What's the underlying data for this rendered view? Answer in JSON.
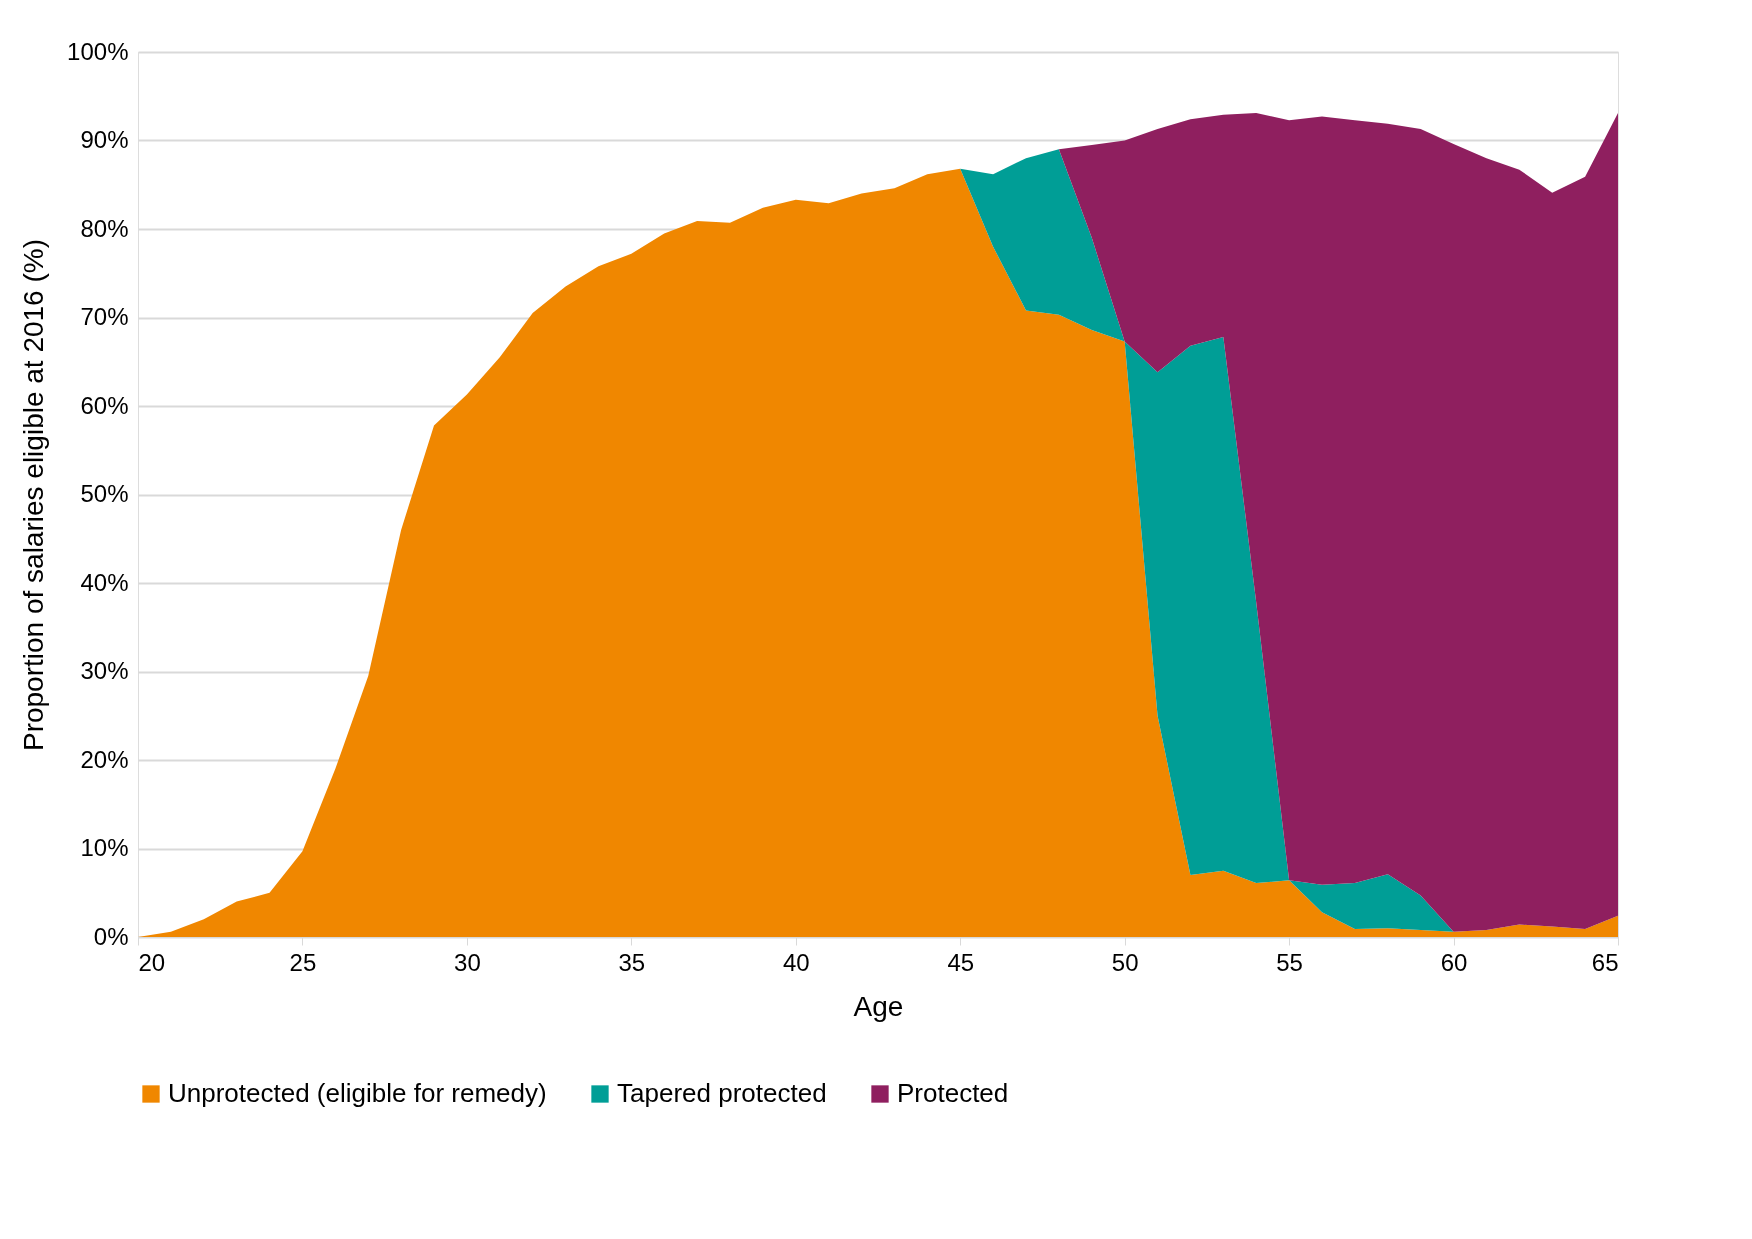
{
  "chart_data": {
    "type": "area",
    "stacked": true,
    "xlabel": "Age",
    "ylabel": "Proportion of salaries eligible at 2016 (%)",
    "x": [
      20,
      21,
      22,
      23,
      24,
      25,
      26,
      27,
      28,
      29,
      30,
      31,
      32,
      33,
      34,
      35,
      36,
      37,
      38,
      39,
      40,
      41,
      42,
      43,
      44,
      45,
      46,
      47,
      48,
      49,
      50,
      51,
      52,
      53,
      54,
      55,
      56,
      57,
      58,
      59,
      60,
      61,
      62,
      63,
      64,
      65
    ],
    "series": [
      {
        "name": "Unprotected (eligible for remedy)",
        "color": "#f08700",
        "values": [
          0,
          0.6,
          2,
          4,
          5,
          9.7,
          19,
          29.5,
          46,
          57.8,
          61.3,
          65.5,
          70.5,
          73.5,
          75.8,
          77.2,
          79.5,
          80.9,
          80.7,
          82.4,
          83.3,
          82.9,
          84,
          84.6,
          86.2,
          86.8,
          78,
          70.8,
          70.3,
          68.6,
          67.3,
          25,
          7,
          7.5,
          6.1,
          6.4,
          2.8,
          0.9,
          1,
          0.8,
          0.6,
          0.8,
          1.4,
          1.2,
          0.9,
          2.4
        ]
      },
      {
        "name": "Tapered protected",
        "color": "#009e96",
        "values": [
          0,
          0,
          0,
          0,
          0,
          0,
          0,
          0,
          0,
          0,
          0,
          0,
          0,
          0,
          0,
          0,
          0,
          0,
          0,
          0,
          0,
          0,
          0,
          0,
          0,
          0,
          8.2,
          17.2,
          18.7,
          10.4,
          0,
          38.8,
          59.8,
          60.3,
          31.7,
          0,
          3.1,
          5.2,
          6.1,
          3.9,
          0,
          0,
          0,
          0,
          0,
          0
        ]
      },
      {
        "name": "Protected",
        "color": "#8f1f5f",
        "values": [
          0,
          0,
          0,
          0,
          0,
          0,
          0,
          0,
          0,
          0,
          0,
          0,
          0,
          0,
          0,
          0,
          0,
          0,
          0,
          0,
          0,
          0,
          0,
          0,
          0,
          0,
          0,
          0,
          0,
          10.5,
          22.7,
          27.5,
          25.6,
          25.1,
          55.3,
          85.9,
          86.8,
          86.2,
          84.8,
          86.6,
          89,
          87.2,
          85.3,
          82.9,
          85,
          90.7
        ]
      }
    ],
    "xlim": [
      20,
      65
    ],
    "xticks": [
      20,
      25,
      30,
      35,
      40,
      45,
      50,
      55,
      60,
      65
    ],
    "ylim": [
      0,
      100
    ],
    "yticks": [
      {
        "value": 0,
        "label": "0%"
      },
      {
        "value": 10,
        "label": "10%"
      },
      {
        "value": 20,
        "label": "20%"
      },
      {
        "value": 30,
        "label": "30%"
      },
      {
        "value": 40,
        "label": "40%"
      },
      {
        "value": 50,
        "label": "50%"
      },
      {
        "value": 60,
        "label": "60%"
      },
      {
        "value": 70,
        "label": "70%"
      },
      {
        "value": 80,
        "label": "80%"
      },
      {
        "value": 90,
        "label": "90%"
      },
      {
        "value": 100,
        "label": "100%"
      }
    ],
    "grid": "y",
    "legend": "bottom"
  }
}
